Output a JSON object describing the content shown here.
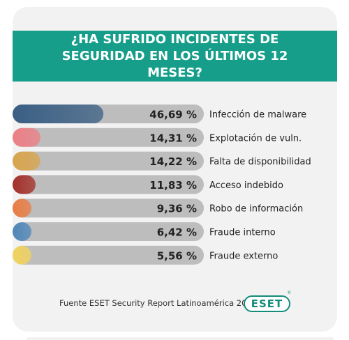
{
  "header": {
    "title": "¿HA SUFRIDO INCIDENTES DE SEGURIDAD EN LOS ÚLTIMOS 12 MESES?"
  },
  "footer": {
    "source": "Fuente ESET Security Report Latinoamérica 2012",
    "logo_text": "ESET",
    "logo_mark": "®"
  },
  "chart_data": {
    "type": "bar",
    "orientation": "horizontal",
    "title": "¿HA SUFRIDO INCIDENTES DE SEGURIDAD EN LOS ÚLTIMOS 12 MESES?",
    "categories": [
      "Infección de malware",
      "Explotación de vuln.",
      "Falta de disponibilidad",
      "Acceso indebido",
      "Robo de información",
      "Fraude interno",
      "Fraude externo"
    ],
    "values": [
      46.69,
      14.31,
      14.22,
      11.83,
      9.36,
      6.42,
      5.56
    ],
    "value_labels": [
      "46,69 %",
      "14,31 %",
      "14,22 %",
      "11,83 %",
      "9,36 %",
      "6,42 %",
      "5,56 %"
    ],
    "colors": [
      "#3a5f84",
      "#ec7f86",
      "#d8a54c",
      "#a3302a",
      "#e97c43",
      "#4f87b8",
      "#f2d35c"
    ],
    "track_color": "#bdbdbd",
    "xlim": [
      0,
      100
    ],
    "grid": false,
    "legend": "none"
  }
}
